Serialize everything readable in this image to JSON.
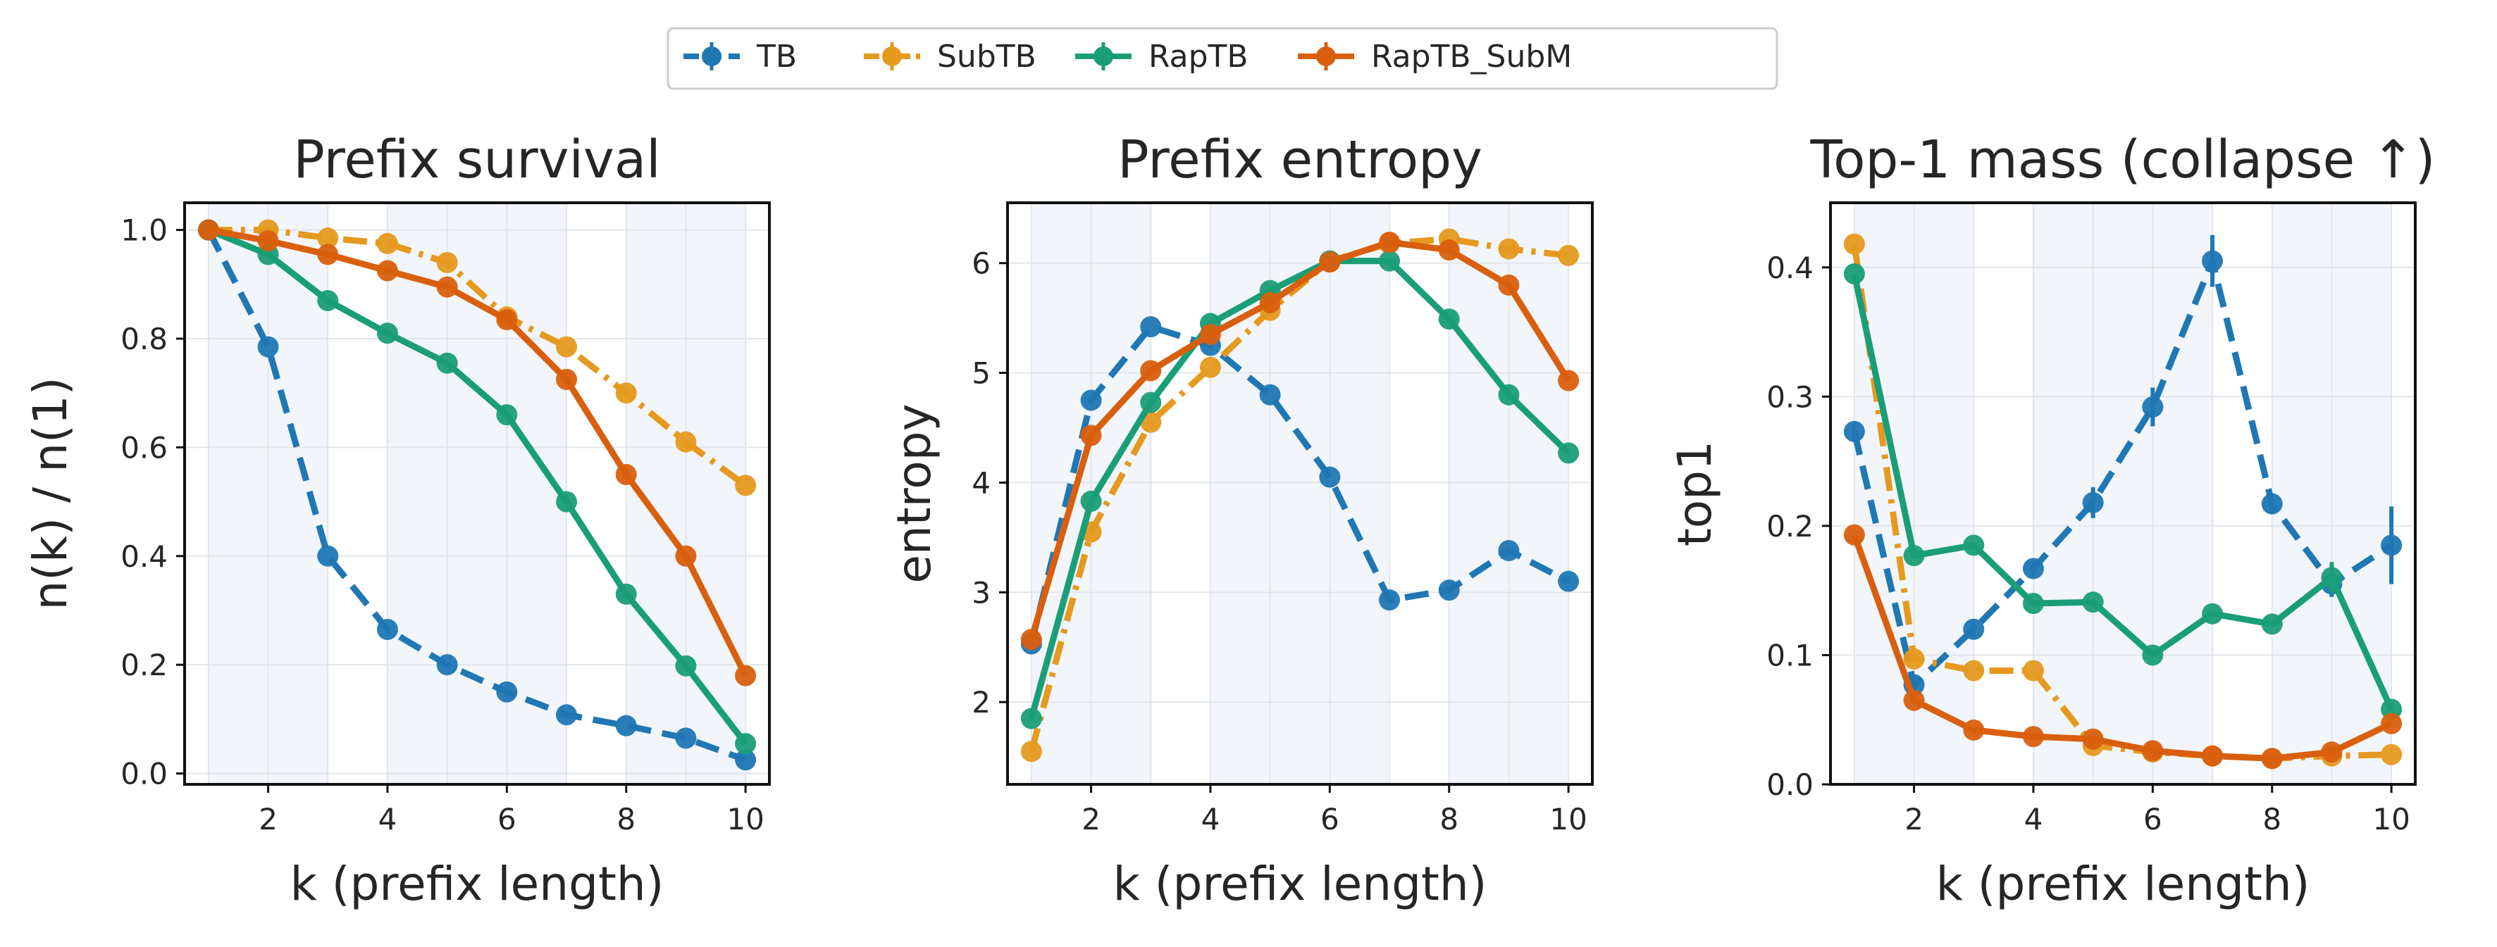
{
  "legend": {
    "entries": [
      {
        "label": "TB",
        "color": "#1f77b4",
        "dash": "dashed"
      },
      {
        "label": "SubTB",
        "color": "#e5991f",
        "dash": "dashdot"
      },
      {
        "label": "RapTB",
        "color": "#1a9e77",
        "dash": "solid"
      },
      {
        "label": "RapTB_SubM",
        "color": "#d95f0e",
        "dash": "solid"
      }
    ]
  },
  "chart_data": [
    {
      "type": "line",
      "title": "Prefix survival",
      "xlabel": "k (prefix length)",
      "ylabel": "n(k) / n(1)",
      "xlim": [
        0.6,
        10.4
      ],
      "ylim": [
        -0.02,
        1.05
      ],
      "xticks": [
        2,
        4,
        6,
        8,
        10
      ],
      "yticks": [
        0.0,
        0.2,
        0.4,
        0.6,
        0.8,
        1.0
      ],
      "ytick_labels": [
        "0.0",
        "0.2",
        "0.4",
        "0.6",
        "0.8",
        "1.0"
      ],
      "bands": [
        [
          1,
          3
        ],
        [
          4,
          7
        ],
        [
          8,
          10
        ]
      ],
      "grid": true,
      "x": [
        1,
        2,
        3,
        4,
        5,
        6,
        7,
        8,
        9,
        10
      ],
      "series": [
        {
          "name": "TB",
          "values": [
            1.0,
            0.785,
            0.4,
            0.265,
            0.2,
            0.15,
            0.108,
            0.088,
            0.065,
            0.025
          ]
        },
        {
          "name": "SubTB",
          "values": [
            1.0,
            1.0,
            0.985,
            0.975,
            0.94,
            0.84,
            0.785,
            0.7,
            0.61,
            0.53
          ]
        },
        {
          "name": "RapTB",
          "values": [
            1.0,
            0.955,
            0.87,
            0.81,
            0.755,
            0.66,
            0.5,
            0.33,
            0.198,
            0.055
          ]
        },
        {
          "name": "RapTB_SubM",
          "values": [
            1.0,
            0.98,
            0.955,
            0.925,
            0.895,
            0.835,
            0.725,
            0.55,
            0.4,
            0.18
          ]
        }
      ]
    },
    {
      "type": "line",
      "title": "Prefix entropy",
      "xlabel": "k (prefix length)",
      "ylabel": "entropy",
      "xlim": [
        0.6,
        10.4
      ],
      "ylim": [
        1.25,
        6.55
      ],
      "xticks": [
        2,
        4,
        6,
        8,
        10
      ],
      "yticks": [
        2,
        3,
        4,
        5,
        6
      ],
      "ytick_labels": [
        "2",
        "3",
        "4",
        "5",
        "6"
      ],
      "bands": [
        [
          1,
          3
        ],
        [
          4,
          7
        ],
        [
          8,
          10
        ]
      ],
      "grid": true,
      "x": [
        1,
        2,
        3,
        4,
        5,
        6,
        7,
        8,
        9,
        10
      ],
      "series": [
        {
          "name": "TB",
          "values": [
            2.53,
            4.75,
            5.42,
            5.25,
            4.8,
            4.05,
            2.93,
            3.02,
            3.38,
            3.1
          ]
        },
        {
          "name": "SubTB",
          "values": [
            1.55,
            3.55,
            4.55,
            5.05,
            5.57,
            6.02,
            6.18,
            6.22,
            6.13,
            6.07
          ]
        },
        {
          "name": "RapTB",
          "values": [
            1.85,
            3.83,
            4.73,
            5.45,
            5.75,
            6.02,
            6.02,
            5.49,
            4.8,
            4.27
          ]
        },
        {
          "name": "RapTB_SubM",
          "values": [
            2.57,
            4.43,
            5.02,
            5.35,
            5.64,
            6.01,
            6.19,
            6.12,
            5.8,
            4.93
          ]
        }
      ]
    },
    {
      "type": "line",
      "title": "Top-1 mass (collapse ↑)",
      "xlabel": "k (prefix length)",
      "ylabel": "top1",
      "xlim": [
        0.6,
        10.4
      ],
      "ylim": [
        0.0,
        0.45
      ],
      "xticks": [
        2,
        4,
        6,
        8,
        10
      ],
      "yticks": [
        0.0,
        0.1,
        0.2,
        0.3,
        0.4
      ],
      "ytick_labels": [
        "0.0",
        "0.1",
        "0.2",
        "0.3",
        "0.4"
      ],
      "bands": [
        [
          1,
          3
        ],
        [
          4,
          7
        ],
        [
          8,
          10
        ]
      ],
      "grid": true,
      "x": [
        1,
        2,
        3,
        4,
        5,
        6,
        7,
        8,
        9,
        10
      ],
      "series": [
        {
          "name": "TB",
          "values": [
            0.273,
            0.077,
            0.12,
            0.167,
            0.218,
            0.292,
            0.405,
            0.217,
            0.155,
            0.185
          ],
          "errors": [
            0.008,
            0.008,
            0.006,
            0.006,
            0.012,
            0.015,
            0.02,
            0.008,
            0.01,
            0.03
          ]
        },
        {
          "name": "SubTB",
          "values": [
            0.418,
            0.097,
            0.088,
            0.088,
            0.03,
            0.025,
            0.022,
            0.02,
            0.022,
            0.023
          ]
        },
        {
          "name": "RapTB",
          "values": [
            0.395,
            0.177,
            0.185,
            0.14,
            0.141,
            0.1,
            0.132,
            0.124,
            0.16,
            0.058
          ],
          "errors": [
            0,
            0,
            0,
            0,
            0,
            0,
            0,
            0,
            0.012,
            0
          ]
        },
        {
          "name": "RapTB_SubM",
          "values": [
            0.193,
            0.065,
            0.042,
            0.037,
            0.035,
            0.026,
            0.022,
            0.02,
            0.025,
            0.047
          ]
        }
      ]
    }
  ]
}
